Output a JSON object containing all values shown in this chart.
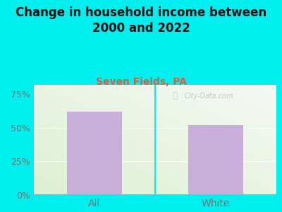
{
  "title": "Change in household income between\n2000 and 2022",
  "subtitle": "Seven Fields, PA",
  "categories": [
    "All",
    "White"
  ],
  "values": [
    62,
    52
  ],
  "bar_color": "#c8aed8",
  "background_color": "#00EFEF",
  "plot_bg_color_green": "#ddf0d0",
  "plot_bg_color_white": "#f5f8f5",
  "title_fontsize": 12,
  "subtitle_fontsize": 10,
  "subtitle_color": "#cc6644",
  "tick_color": "#707870",
  "yticks": [
    0,
    25,
    50,
    75
  ],
  "ylim": [
    0,
    82
  ],
  "watermark_text": "City-Data.com",
  "watermark_color": "#b8c4c4",
  "separator_color": "#00EFEF"
}
